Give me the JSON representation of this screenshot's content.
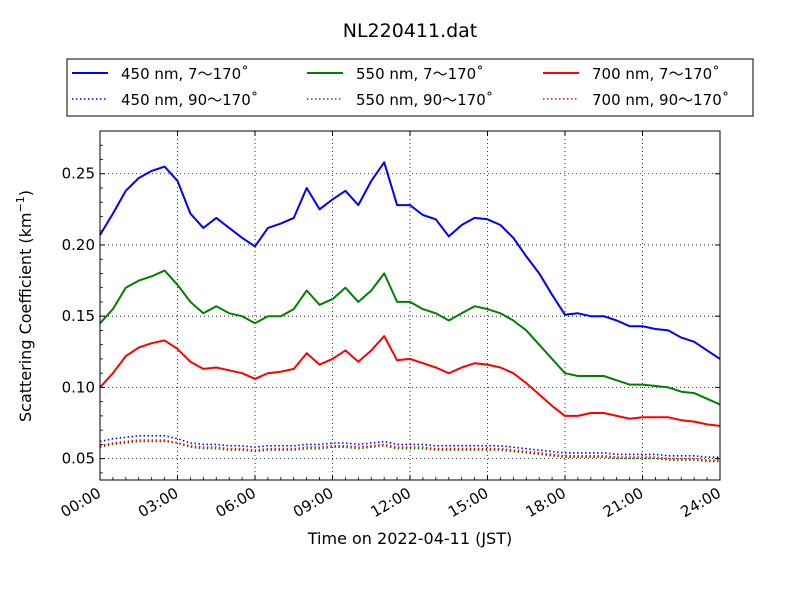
{
  "chart_data": {
    "type": "line",
    "title": "NL220411.dat",
    "xlabel": "Time on 2022-04-11 (JST)",
    "ylabel": "Scattering Coefficient (km",
    "ylabel_sup": "−1",
    "ylabel_close": ")",
    "xlim": [
      0,
      24
    ],
    "ylim": [
      0.035,
      0.28
    ],
    "x_tick_values": [
      0,
      3,
      6,
      9,
      12,
      15,
      18,
      21,
      24
    ],
    "x_tick_labels": [
      "00:00",
      "03:00",
      "06:00",
      "09:00",
      "12:00",
      "15:00",
      "18:00",
      "21:00",
      "24:00"
    ],
    "y_tick_values": [
      0.05,
      0.1,
      0.15,
      0.2,
      0.25
    ],
    "y_tick_labels": [
      "0.05",
      "0.10",
      "0.15",
      "0.20",
      "0.25"
    ],
    "grid": true,
    "legend_position": "above plot, 3 columns",
    "x": [
      0,
      0.5,
      1,
      1.5,
      2,
      2.5,
      3,
      3.5,
      4,
      4.5,
      5,
      5.5,
      6,
      6.5,
      7,
      7.5,
      8,
      8.5,
      9,
      9.5,
      10,
      10.5,
      11,
      11.5,
      12,
      12.5,
      13,
      13.5,
      14,
      14.5,
      15,
      15.5,
      16,
      16.5,
      17,
      17.5,
      18,
      18.5,
      19,
      19.5,
      20,
      20.5,
      21,
      21.5,
      22,
      22.5,
      23,
      23.5,
      24
    ],
    "series": [
      {
        "name": "450 nm, 7～170˚",
        "color": "#0000ff",
        "style": "solid",
        "values": [
          0.207,
          0.222,
          0.238,
          0.247,
          0.252,
          0.255,
          0.245,
          0.222,
          0.212,
          0.219,
          0.212,
          0.205,
          0.199,
          0.212,
          0.215,
          0.219,
          0.24,
          0.225,
          0.232,
          0.238,
          0.228,
          0.245,
          0.258,
          0.228,
          0.228,
          0.221,
          0.218,
          0.206,
          0.214,
          0.219,
          0.218,
          0.214,
          0.205,
          0.192,
          0.18,
          0.165,
          0.151,
          0.152,
          0.15,
          0.15,
          0.147,
          0.143,
          0.143,
          0.141,
          0.14,
          0.135,
          0.132,
          0.126,
          0.12
        ]
      },
      {
        "name": "450 nm, 90～170˚",
        "color": "#0000ff",
        "style": "dotted",
        "values": [
          0.062,
          0.064,
          0.065,
          0.066,
          0.066,
          0.066,
          0.064,
          0.061,
          0.06,
          0.06,
          0.059,
          0.059,
          0.058,
          0.059,
          0.059,
          0.059,
          0.06,
          0.06,
          0.061,
          0.061,
          0.06,
          0.061,
          0.062,
          0.06,
          0.06,
          0.06,
          0.059,
          0.059,
          0.059,
          0.059,
          0.059,
          0.059,
          0.058,
          0.057,
          0.056,
          0.055,
          0.054,
          0.054,
          0.054,
          0.054,
          0.053,
          0.053,
          0.053,
          0.053,
          0.052,
          0.052,
          0.052,
          0.051,
          0.051
        ]
      },
      {
        "name": "550 nm, 7～170˚",
        "color": "#008000",
        "style": "solid",
        "values": [
          0.145,
          0.155,
          0.17,
          0.175,
          0.178,
          0.182,
          0.172,
          0.16,
          0.152,
          0.157,
          0.152,
          0.15,
          0.145,
          0.15,
          0.15,
          0.155,
          0.168,
          0.158,
          0.162,
          0.17,
          0.16,
          0.168,
          0.18,
          0.16,
          0.16,
          0.155,
          0.152,
          0.147,
          0.152,
          0.157,
          0.155,
          0.152,
          0.147,
          0.14,
          0.13,
          0.12,
          0.11,
          0.108,
          0.108,
          0.108,
          0.105,
          0.102,
          0.102,
          0.101,
          0.1,
          0.097,
          0.096,
          0.092,
          0.088
        ]
      },
      {
        "name": "550 nm, 90～170˚",
        "color": "#008000",
        "style": "dotted",
        "values": [
          0.058,
          0.06,
          0.061,
          0.062,
          0.062,
          0.062,
          0.061,
          0.058,
          0.057,
          0.057,
          0.056,
          0.056,
          0.055,
          0.056,
          0.056,
          0.056,
          0.057,
          0.057,
          0.058,
          0.058,
          0.057,
          0.058,
          0.059,
          0.057,
          0.057,
          0.057,
          0.056,
          0.056,
          0.056,
          0.056,
          0.056,
          0.056,
          0.055,
          0.054,
          0.053,
          0.052,
          0.051,
          0.051,
          0.051,
          0.051,
          0.05,
          0.05,
          0.05,
          0.05,
          0.049,
          0.049,
          0.049,
          0.048,
          0.048
        ]
      },
      {
        "name": "700 nm, 7～170˚",
        "color": "#ff0000",
        "style": "solid",
        "values": [
          0.1,
          0.11,
          0.122,
          0.128,
          0.131,
          0.133,
          0.127,
          0.118,
          0.113,
          0.114,
          0.112,
          0.11,
          0.106,
          0.11,
          0.111,
          0.113,
          0.124,
          0.116,
          0.12,
          0.126,
          0.118,
          0.126,
          0.136,
          0.119,
          0.12,
          0.117,
          0.114,
          0.11,
          0.114,
          0.117,
          0.116,
          0.114,
          0.11,
          0.103,
          0.095,
          0.087,
          0.08,
          0.08,
          0.082,
          0.082,
          0.08,
          0.078,
          0.079,
          0.079,
          0.079,
          0.077,
          0.076,
          0.074,
          0.073
        ]
      },
      {
        "name": "700 nm, 90～170˚",
        "color": "#ff0000",
        "style": "dotted",
        "values": [
          0.059,
          0.061,
          0.062,
          0.063,
          0.063,
          0.063,
          0.061,
          0.059,
          0.058,
          0.058,
          0.057,
          0.057,
          0.056,
          0.057,
          0.057,
          0.057,
          0.058,
          0.058,
          0.059,
          0.059,
          0.058,
          0.059,
          0.06,
          0.058,
          0.058,
          0.058,
          0.057,
          0.057,
          0.057,
          0.057,
          0.057,
          0.057,
          0.056,
          0.055,
          0.054,
          0.053,
          0.052,
          0.052,
          0.052,
          0.052,
          0.051,
          0.051,
          0.051,
          0.051,
          0.05,
          0.05,
          0.05,
          0.049,
          0.049
        ]
      }
    ]
  }
}
